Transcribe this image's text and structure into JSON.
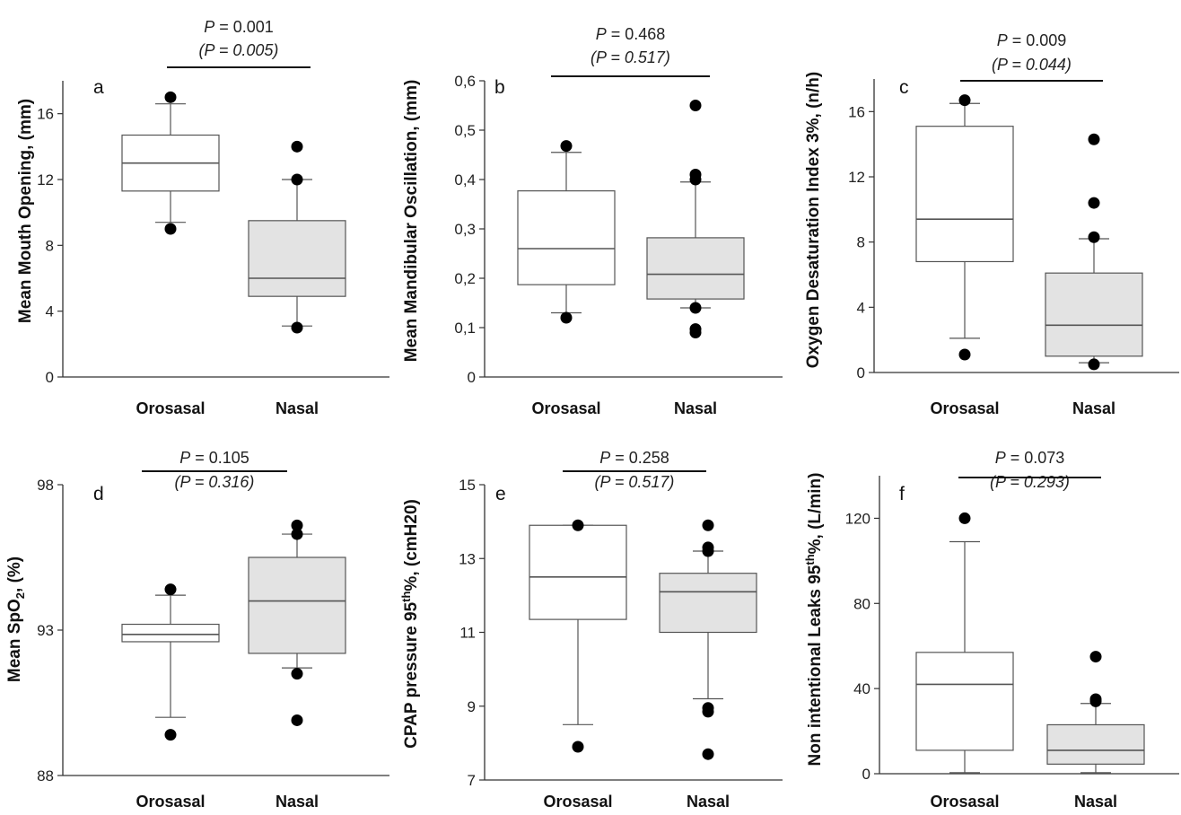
{
  "chart_data": [
    {
      "panel": "a",
      "type": "box",
      "ylabel": "Mean  Mouth Opening, (mm)",
      "ylim": [
        0,
        18
      ],
      "yticks": [
        "0",
        "4",
        "8",
        "12",
        "16"
      ],
      "ytick_values": [
        0,
        4,
        8,
        12,
        16
      ],
      "p_value": "P = 0.001",
      "p_value_adjusted": "(P = 0.005)",
      "categories": [
        "Orosasal",
        "Nasal"
      ],
      "boxes": [
        {
          "min": 9.4,
          "q1": 11.3,
          "median": 13.0,
          "q3": 14.7,
          "max": 16.6,
          "outliers": [
            17.0,
            9.0
          ]
        },
        {
          "min": 3.1,
          "q1": 4.9,
          "median": 6.0,
          "q3": 9.5,
          "max": 12.0,
          "outliers": [
            14.0,
            12.0,
            3.0
          ]
        }
      ]
    },
    {
      "panel": "b",
      "type": "box",
      "ylabel": "Mean Mandibular Oscillation, (mm)",
      "ylim": [
        0,
        0.6
      ],
      "yticks": [
        "0",
        "0,1",
        "0,2",
        "0,3",
        "0,4",
        "0,5",
        "0,6"
      ],
      "ytick_values": [
        0,
        0.1,
        0.2,
        0.3,
        0.4,
        0.5,
        0.6
      ],
      "p_value": "P = 0.468",
      "p_value_adjusted": "(P = 0.517)",
      "categories": [
        "Orosasal",
        "Nasal"
      ],
      "boxes": [
        {
          "min": 0.13,
          "q1": 0.187,
          "median": 0.26,
          "q3": 0.377,
          "max": 0.455,
          "outliers": [
            0.468,
            0.12
          ]
        },
        {
          "min": 0.14,
          "q1": 0.158,
          "median": 0.208,
          "q3": 0.282,
          "max": 0.395,
          "outliers": [
            0.55,
            0.41,
            0.4,
            0.14,
            0.097,
            0.09
          ]
        }
      ]
    },
    {
      "panel": "c",
      "type": "box",
      "ylabel": "Oxygen Desaturation  Index 3%, (n/h)",
      "ylim": [
        0,
        18
      ],
      "yticks": [
        "0",
        "4",
        "8",
        "12",
        "16"
      ],
      "ytick_values": [
        0,
        4,
        8,
        12,
        16
      ],
      "p_value": "P = 0.009",
      "p_value_adjusted": "(P = 0.044)",
      "categories": [
        "Orosasal",
        "Nasal"
      ],
      "boxes": [
        {
          "min": 2.1,
          "q1": 6.8,
          "median": 9.4,
          "q3": 15.1,
          "max": 16.5,
          "outliers": [
            16.7,
            1.1
          ]
        },
        {
          "min": 0.6,
          "q1": 1.0,
          "median": 2.9,
          "q3": 6.1,
          "max": 8.2,
          "outliers": [
            14.3,
            10.4,
            8.3,
            0.5
          ]
        }
      ]
    },
    {
      "panel": "d",
      "type": "box",
      "ylabel": "Mean SpO",
      "ylabel_sub": "2",
      "ylabel_tail": ", (%)",
      "ylim": [
        88,
        98
      ],
      "yticks": [
        "88",
        "93",
        "98"
      ],
      "ytick_values": [
        88,
        93,
        98
      ],
      "p_value": "P = 0.105",
      "p_value_adjusted": "(P = 0.316)",
      "categories": [
        "Orosasal",
        "Nasal"
      ],
      "boxes": [
        {
          "min": 90.0,
          "q1": 92.6,
          "median": 92.85,
          "q3": 93.2,
          "max": 94.2,
          "outliers": [
            94.4,
            89.4
          ]
        },
        {
          "min": 91.7,
          "q1": 92.2,
          "median": 94.0,
          "q3": 95.5,
          "max": 96.3,
          "outliers": [
            96.6,
            96.3,
            91.5,
            89.9
          ]
        }
      ]
    },
    {
      "panel": "e",
      "type": "box",
      "ylabel": "CPAP pressure 95",
      "ylabel_sup": "th",
      "ylabel_tail": "%, (cmH20)",
      "ylim": [
        7,
        15
      ],
      "yticks": [
        "7",
        "9",
        "11",
        "13",
        "15"
      ],
      "ytick_values": [
        7,
        9,
        11,
        13,
        15
      ],
      "p_value": "P = 0.258",
      "p_value_adjusted": "(P = 0.517)",
      "categories": [
        "Orosasal",
        "Nasal"
      ],
      "boxes": [
        {
          "min": 8.5,
          "q1": 11.35,
          "median": 12.5,
          "q3": 13.9,
          "max": 13.9,
          "outliers": [
            13.9,
            7.9
          ]
        },
        {
          "min": 9.2,
          "q1": 11.0,
          "median": 12.1,
          "q3": 12.6,
          "max": 13.2,
          "outliers": [
            13.9,
            13.3,
            13.2,
            8.95,
            8.85,
            7.7
          ]
        }
      ]
    },
    {
      "panel": "f",
      "type": "box",
      "ylabel": "Non intentional Leaks 95",
      "ylabel_sup": "th",
      "ylabel_tail": "%, (L/min)",
      "ylim": [
        0,
        140
      ],
      "yticks": [
        "0",
        "40",
        "80",
        "120"
      ],
      "ytick_values": [
        0,
        40,
        80,
        120
      ],
      "p_value": "P = 0.073",
      "p_value_adjusted": "(P = 0.293)",
      "categories": [
        "Orosasal",
        "Nasal"
      ],
      "boxes": [
        {
          "min": 0.5,
          "q1": 11.0,
          "median": 42.0,
          "q3": 57.0,
          "max": 109.0,
          "outliers": [
            120.0
          ]
        },
        {
          "min": 0.5,
          "q1": 4.5,
          "median": 11.0,
          "q3": 23.0,
          "max": 33.0,
          "outliers": [
            55.0,
            35.0,
            34.0
          ]
        }
      ]
    }
  ],
  "colors": {
    "box1_fill": "#ffffff",
    "box2_fill": "#e3e3e3",
    "stroke": "#555555",
    "axis": "#333333",
    "point": "#000000"
  }
}
